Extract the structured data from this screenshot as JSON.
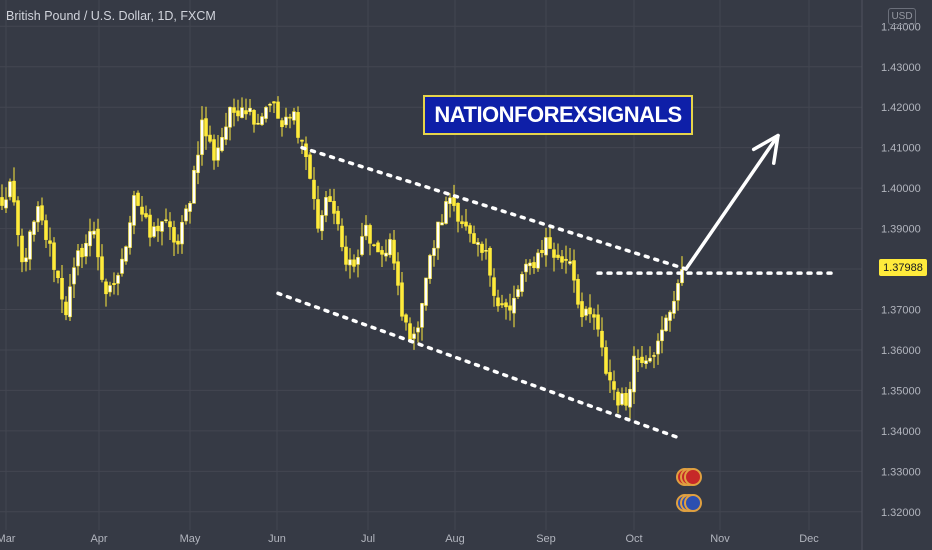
{
  "header": {
    "title": "British Pound / U.S. Dollar, 1D, FXCM",
    "currency": "USD",
    "brand": "NATIONFOREXSIGNALS"
  },
  "colors": {
    "background": "#363a45",
    "candle": "#ffeb3b",
    "wick": "#ffeb3b",
    "grid": "#434651",
    "annotation": "#ffffff",
    "axis_text": "#b2b5be"
  },
  "chart_data": {
    "type": "candlestick",
    "title": "British Pound / U.S. Dollar, 1D, FXCM",
    "ylim": [
      1.3155,
      1.4465
    ],
    "grid": true,
    "y_ticks": [
      "1.32000",
      "1.33000",
      "1.34000",
      "1.35000",
      "1.36000",
      "1.37000",
      "1.38000",
      "1.39000",
      "1.40000",
      "1.41000",
      "1.42000",
      "1.43000",
      "1.44000"
    ],
    "x_ticks": [
      "Mar",
      "Apr",
      "May",
      "Jun",
      "Jul",
      "Aug",
      "Sep",
      "Oct",
      "Nov",
      "Dec"
    ],
    "last_price": "1.37988",
    "series": [
      {
        "close_path": [
          [
            0,
            1.395
          ],
          [
            2,
            1.401
          ],
          [
            5,
            1.381
          ],
          [
            9,
            1.394
          ],
          [
            12,
            1.385
          ],
          [
            16,
            1.37
          ],
          [
            19,
            1.383
          ],
          [
            23,
            1.39
          ],
          [
            26,
            1.372
          ],
          [
            30,
            1.381
          ],
          [
            33,
            1.399
          ],
          [
            37,
            1.388
          ],
          [
            40,
            1.392
          ],
          [
            44,
            1.386
          ],
          [
            47,
            1.398
          ],
          [
            50,
            1.416
          ],
          [
            53,
            1.408
          ],
          [
            57,
            1.418
          ],
          [
            60,
            1.421
          ],
          [
            64,
            1.417
          ],
          [
            67,
            1.422
          ],
          [
            70,
            1.415
          ],
          [
            73,
            1.418
          ],
          [
            76,
            1.408
          ],
          [
            79,
            1.391
          ],
          [
            82,
            1.398
          ],
          [
            85,
            1.385
          ],
          [
            88,
            1.38
          ],
          [
            91,
            1.39
          ],
          [
            94,
            1.382
          ],
          [
            97,
            1.387
          ],
          [
            100,
            1.368
          ],
          [
            103,
            1.362
          ],
          [
            106,
            1.378
          ],
          [
            109,
            1.39
          ],
          [
            112,
            1.398
          ],
          [
            115,
            1.392
          ],
          [
            118,
            1.385
          ],
          [
            121,
            1.383
          ],
          [
            124,
            1.372
          ],
          [
            127,
            1.369
          ],
          [
            130,
            1.378
          ],
          [
            133,
            1.382
          ],
          [
            136,
            1.387
          ],
          [
            139,
            1.382
          ],
          [
            142,
            1.383
          ],
          [
            145,
            1.368
          ],
          [
            148,
            1.368
          ],
          [
            151,
            1.355
          ],
          [
            154,
            1.348
          ],
          [
            156,
            1.347
          ],
          [
            158,
            1.358
          ],
          [
            161,
            1.359
          ],
          [
            164,
            1.361
          ],
          [
            167,
            1.37
          ],
          [
            170,
            1.3799
          ]
        ],
        "name": ""
      }
    ],
    "annotations": [
      {
        "kind": "dotted-line",
        "note": "upper trendline",
        "from": [
          75,
          1.41
        ],
        "to": [
          171,
          1.38
        ]
      },
      {
        "kind": "dotted-line",
        "note": "lower trendline",
        "from": [
          69,
          1.374
        ],
        "to": [
          170,
          1.338
        ]
      },
      {
        "kind": "dotted-line",
        "note": "horizontal level",
        "from": [
          149,
          1.379
        ],
        "to": [
          208,
          1.379
        ]
      },
      {
        "kind": "arrow",
        "note": "breakout",
        "from": [
          171,
          1.38
        ],
        "to": [
          194,
          1.413
        ]
      }
    ]
  }
}
